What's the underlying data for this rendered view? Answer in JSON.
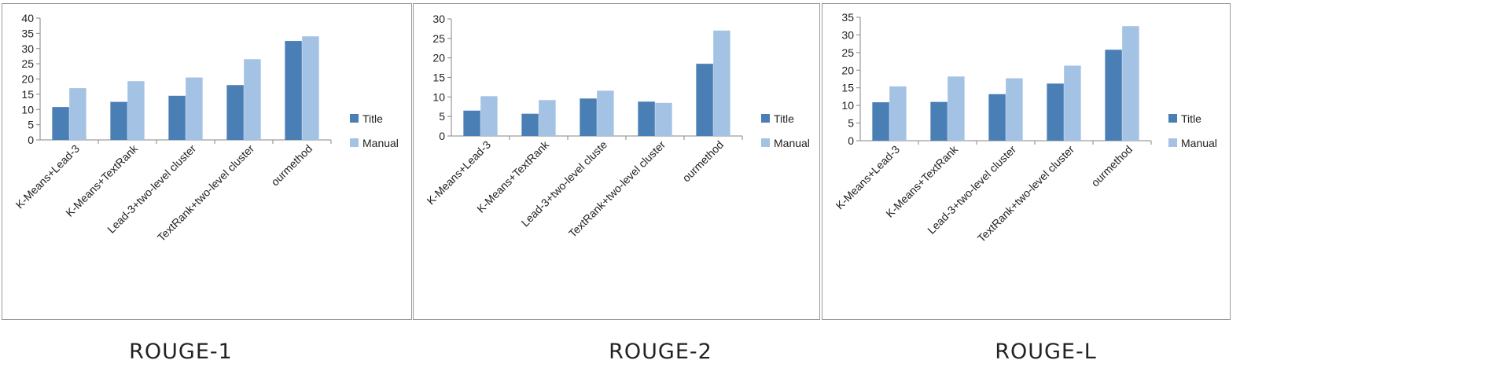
{
  "colors": {
    "Title": "#4a7fb5",
    "Manual": "#a4c2e4",
    "axis": "#868686",
    "grid": "#d9d9d9"
  },
  "chart_data": [
    {
      "type": "bar",
      "caption": "ROUGE-1",
      "categories": [
        "K-Means+Lead-3",
        "K-Means+TextRank",
        "Lead-3+two-level cluster",
        "TextRank+two-level cluster",
        "ourmethod"
      ],
      "series": [
        {
          "name": "Title",
          "values": [
            10.8,
            12.5,
            14.5,
            18.0,
            32.5
          ]
        },
        {
          "name": "Manual",
          "values": [
            17.0,
            19.3,
            20.5,
            26.5,
            34.0
          ]
        }
      ],
      "ylim": [
        0,
        40
      ],
      "yticks": [
        0,
        5,
        10,
        15,
        20,
        25,
        30,
        35,
        40
      ],
      "legend": "right"
    },
    {
      "type": "bar",
      "caption": "ROUGE-2",
      "categories": [
        "K-Means+Lead-3",
        "K-Means+TextRank",
        "Lead-3+two-level cluste",
        "TextRank+two-level cluster",
        "ourmethod"
      ],
      "series": [
        {
          "name": "Title",
          "values": [
            6.5,
            5.7,
            9.6,
            8.8,
            18.5
          ]
        },
        {
          "name": "Manual",
          "values": [
            10.2,
            9.2,
            11.6,
            8.5,
            27.0
          ]
        }
      ],
      "ylim": [
        0,
        30
      ],
      "yticks": [
        0,
        5,
        10,
        15,
        20,
        25,
        30
      ],
      "legend": "right"
    },
    {
      "type": "bar",
      "caption": "ROUGE-L",
      "categories": [
        "K-Means+Lead-3",
        "K-Means+TextRank",
        "Lead-3+two-level cluster",
        "TextRank+two-level cluster",
        "ourmethod"
      ],
      "series": [
        {
          "name": "Title",
          "values": [
            10.9,
            11.0,
            13.2,
            16.2,
            25.8
          ]
        },
        {
          "name": "Manual",
          "values": [
            15.4,
            18.2,
            17.7,
            21.3,
            32.5
          ]
        }
      ],
      "ylim": [
        0,
        35
      ],
      "yticks": [
        0,
        5,
        10,
        15,
        20,
        25,
        30,
        35
      ],
      "legend": "right"
    }
  ]
}
